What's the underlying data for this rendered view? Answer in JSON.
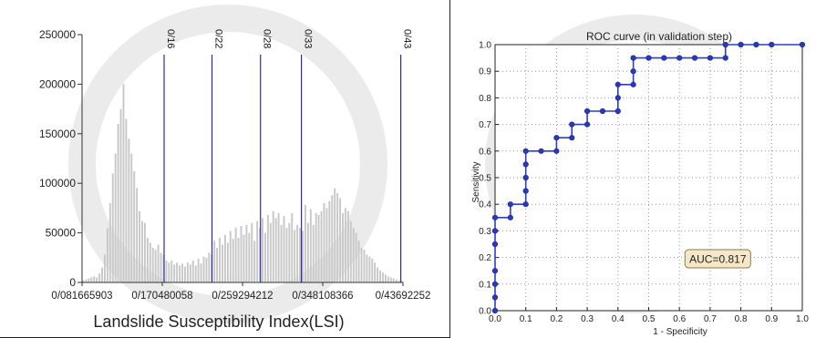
{
  "chart_data": [
    {
      "type": "bar",
      "xlabel": "Landslide Susceptibility Index(LSI)",
      "ylabel": "",
      "xlim": [
        0.081665903,
        0.43692252
      ],
      "ylim": [
        0,
        250000
      ],
      "x_tick_labels": [
        "0/081665903",
        "0/170480058",
        "0/259294212",
        "0/348108366",
        "0/43692252"
      ],
      "y_tick_labels": [
        "0",
        "50000",
        "100000",
        "150000",
        "200000",
        "250000"
      ],
      "y_ticks": [
        0,
        50000,
        100000,
        150000,
        200000,
        250000
      ],
      "threshold_lines": [
        {
          "label": "0/16",
          "x": 0.1725
        },
        {
          "label": "0/22",
          "x": 0.2255
        },
        {
          "label": "0/28",
          "x": 0.2792
        },
        {
          "label": "0/33",
          "x": 0.3245
        },
        {
          "label": "0/43",
          "x": 0.4345
        }
      ],
      "bin_count": 120,
      "values": [
        2000,
        3000,
        4000,
        5000,
        6000,
        5000,
        9000,
        15000,
        28000,
        55000,
        80000,
        110000,
        130000,
        160000,
        175000,
        200000,
        165000,
        145000,
        130000,
        112000,
        95000,
        72000,
        62000,
        60000,
        45000,
        40000,
        35000,
        33000,
        38000,
        30000,
        28000,
        22000,
        20000,
        22000,
        18000,
        20000,
        17000,
        19000,
        16000,
        20000,
        18000,
        22000,
        17000,
        24000,
        19000,
        26000,
        25000,
        30000,
        28000,
        42000,
        35000,
        45000,
        38000,
        48000,
        40000,
        52000,
        44000,
        55000,
        45000,
        57000,
        48000,
        58000,
        50000,
        60000,
        42000,
        62000,
        55000,
        65000,
        50000,
        68000,
        60000,
        72000,
        65000,
        70000,
        58000,
        67000,
        55000,
        60000,
        70000,
        53000,
        58000,
        55000,
        52000,
        78000,
        60000,
        74000,
        58000,
        70000,
        68000,
        72000,
        80000,
        75000,
        82000,
        88000,
        95000,
        90000,
        85000,
        70000,
        75000,
        72000,
        62000,
        55000,
        50000,
        42000,
        35000,
        33000,
        28000,
        26000,
        24000,
        20000,
        15000,
        12000,
        10000,
        8000,
        6000,
        5000,
        4000,
        3000,
        2000,
        1500
      ]
    },
    {
      "type": "line",
      "title": "ROC curve (in validation step)",
      "xlabel": "1 - Specificity",
      "ylabel": "Sensitivity",
      "xlim": [
        0,
        1
      ],
      "ylim": [
        0,
        1
      ],
      "grid": true,
      "x_tick_labels": [
        "0.0",
        "0.1",
        "0.2",
        "0.3",
        "0.4",
        "0.5",
        "0.6",
        "0.7",
        "0.8",
        "0.9",
        "1.0"
      ],
      "y_tick_labels": [
        "0.0",
        "0.1",
        "0.2",
        "0.3",
        "0.4",
        "0.5",
        "0.6",
        "0.7",
        "0.8",
        "0.9",
        "1.0"
      ],
      "annotation": "AUC=0.817",
      "colors": {
        "line": "#2f3ec2",
        "marker": "#2a39b8",
        "annotation_bg": "#f6e7c6"
      },
      "x": [
        0,
        0,
        0,
        0,
        0,
        0,
        0,
        0.05,
        0.05,
        0.1,
        0.1,
        0.1,
        0.1,
        0.1,
        0.15,
        0.2,
        0.2,
        0.25,
        0.25,
        0.3,
        0.3,
        0.35,
        0.4,
        0.4,
        0.4,
        0.45,
        0.45,
        0.45,
        0.5,
        0.55,
        0.6,
        0.65,
        0.7,
        0.75,
        0.75,
        0.8,
        0.85,
        0.9,
        1.0
      ],
      "y": [
        0,
        0.05,
        0.1,
        0.15,
        0.25,
        0.3,
        0.35,
        0.35,
        0.4,
        0.4,
        0.45,
        0.5,
        0.55,
        0.6,
        0.6,
        0.6,
        0.65,
        0.65,
        0.7,
        0.7,
        0.75,
        0.75,
        0.75,
        0.8,
        0.85,
        0.85,
        0.9,
        0.95,
        0.95,
        0.95,
        0.95,
        0.95,
        0.95,
        0.95,
        1.0,
        1.0,
        1.0,
        1.0,
        1.0
      ]
    }
  ]
}
